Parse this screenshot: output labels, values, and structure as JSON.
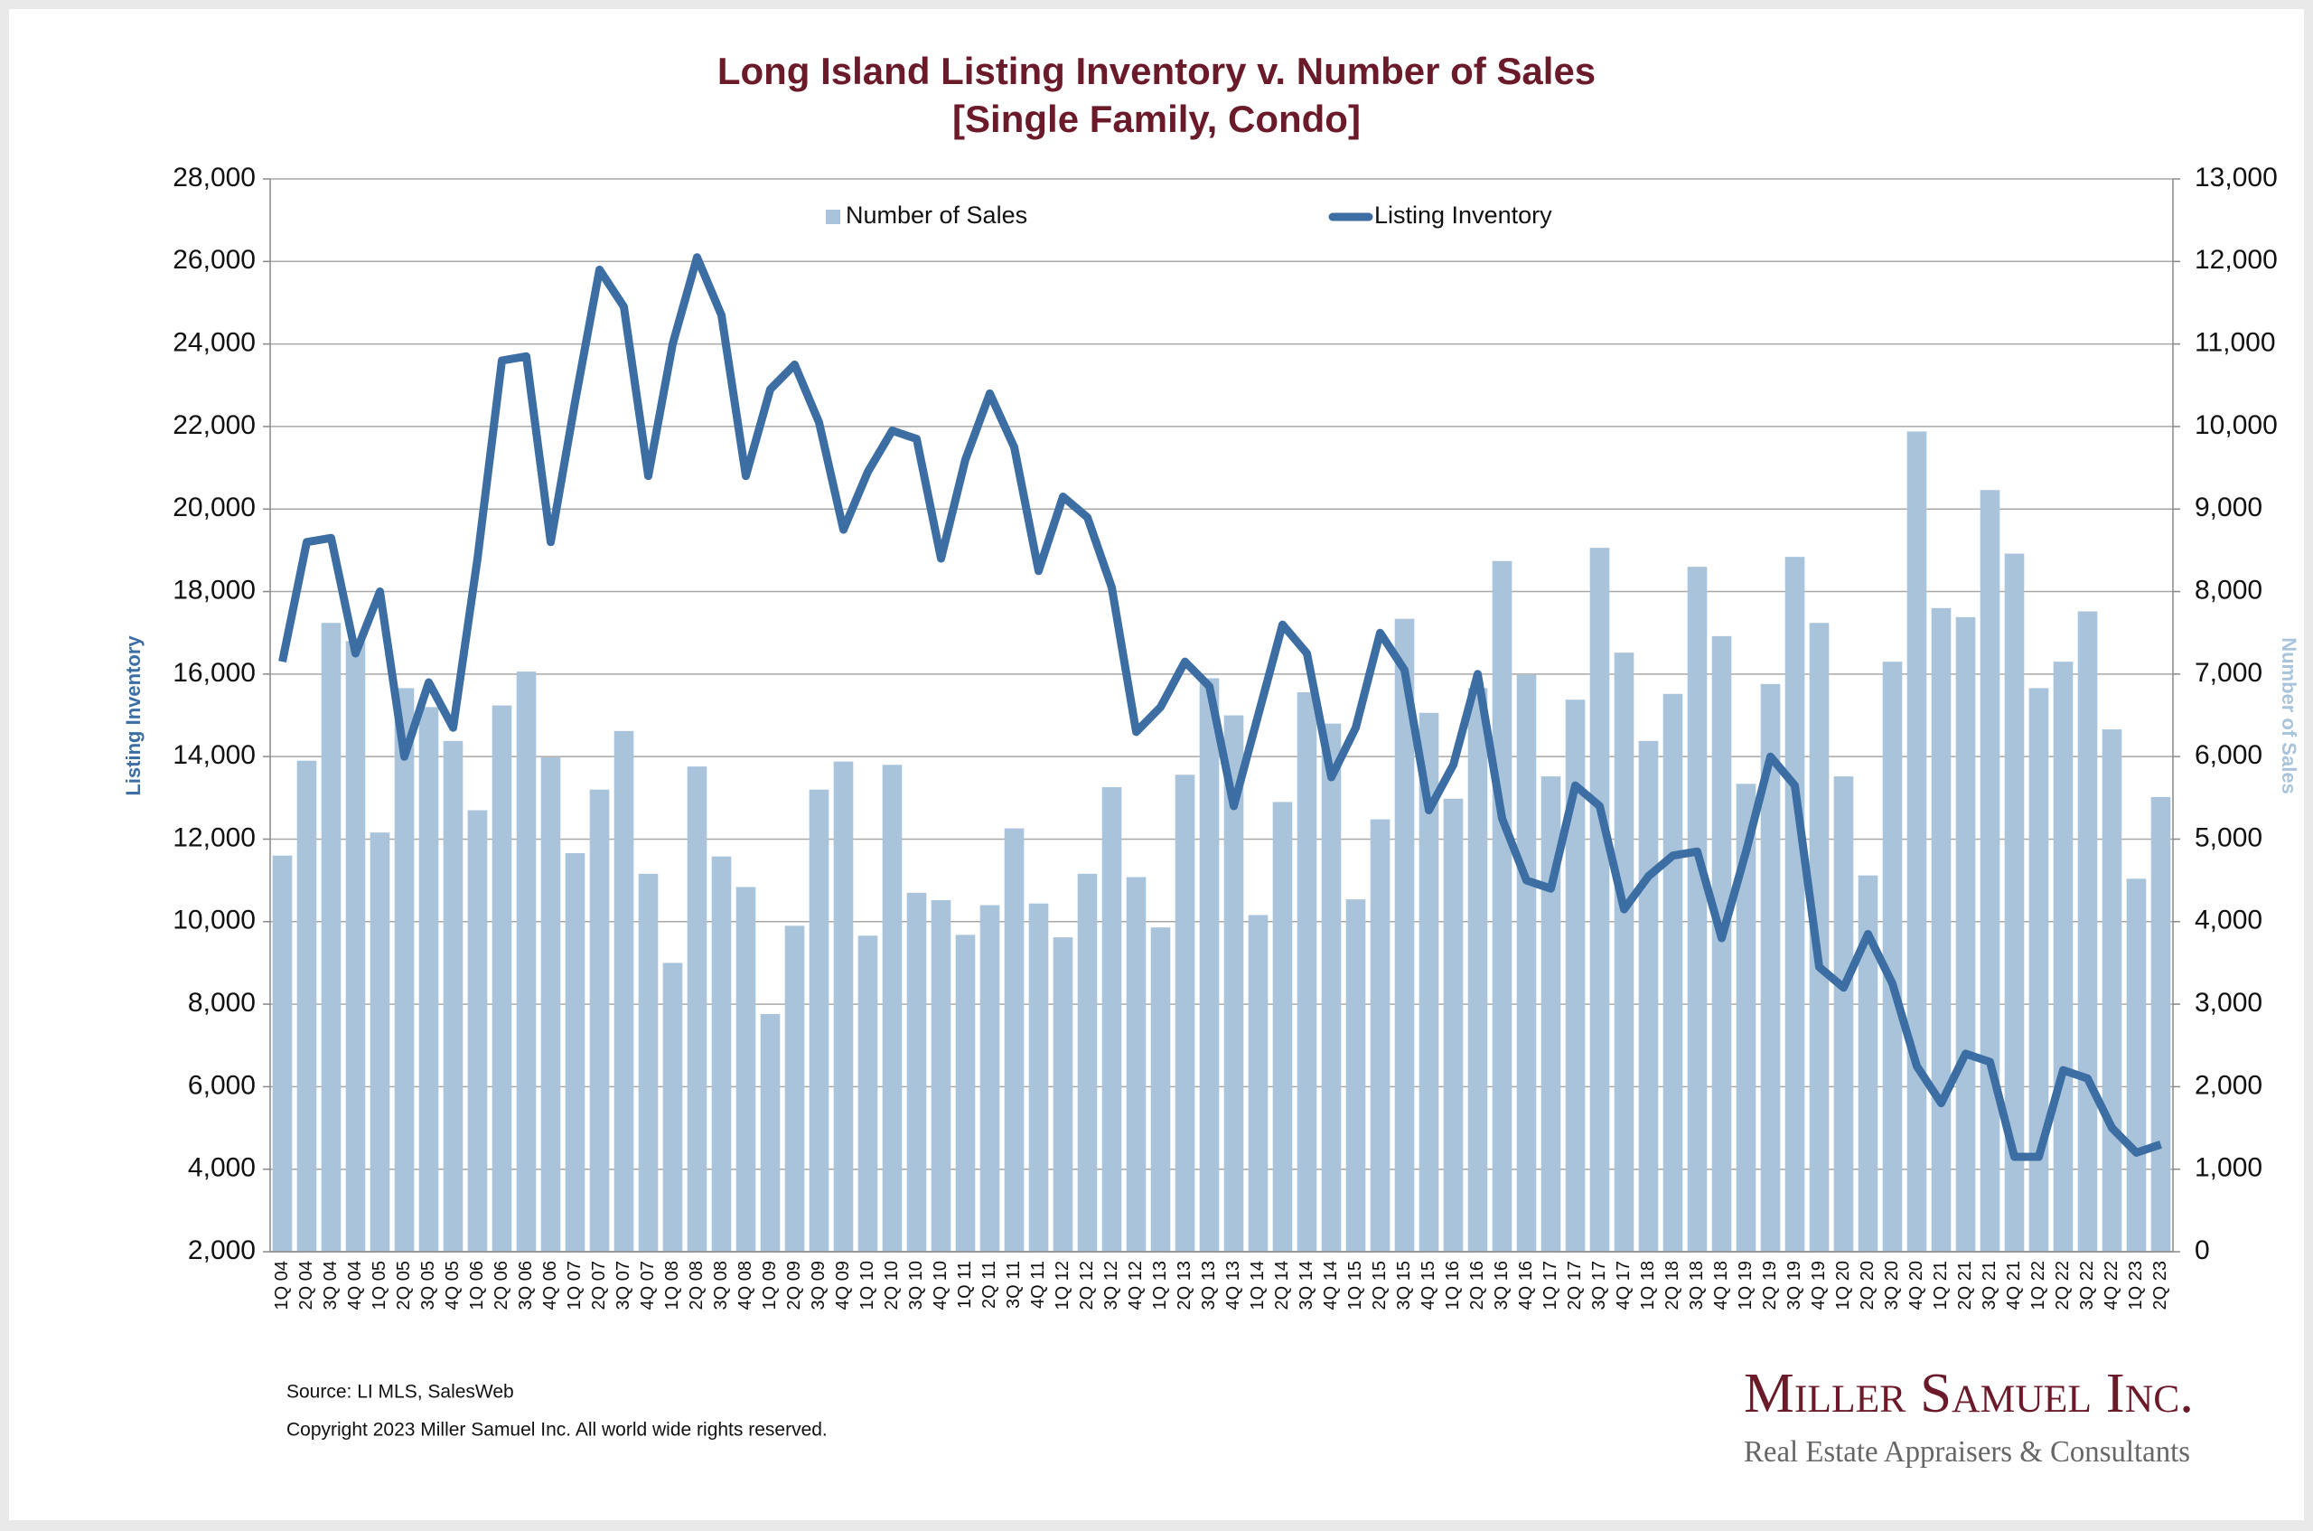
{
  "chart_data": {
    "type": "bar-line",
    "title": "Long Island Listing Inventory v. Number of Sales",
    "subtitle": "[Single Family, Condo]",
    "y_label": "Listing Inventory",
    "y2_label": "Number of Sales",
    "source": "Source: LI MLS, SalesWeb",
    "copyright": "Copyright 2023 Miller Samuel Inc.  All world wide rights reserved.",
    "logo": "Miller Samuel Inc.",
    "tagline": "Real Estate Appraisers & Consultants",
    "categories": [
      "1Q 04",
      "2Q 04",
      "3Q 04",
      "4Q 04",
      "1Q 05",
      "2Q 05",
      "3Q 05",
      "4Q 05",
      "1Q 06",
      "2Q 06",
      "3Q 06",
      "4Q 06",
      "1Q 07",
      "2Q 07",
      "3Q 07",
      "4Q 07",
      "1Q 08",
      "2Q 08",
      "3Q 08",
      "4Q 08",
      "1Q 09",
      "2Q 09",
      "3Q 09",
      "4Q 09",
      "1Q 10",
      "2Q 10",
      "3Q 10",
      "4Q 10",
      "1Q 11",
      "2Q 11",
      "3Q 11",
      "4Q 11",
      "1Q 12",
      "2Q 12",
      "3Q 12",
      "4Q 12",
      "1Q 13",
      "2Q 13",
      "3Q 13",
      "4Q 13",
      "1Q 14",
      "2Q 14",
      "3Q 14",
      "4Q 14",
      "1Q 15",
      "2Q 15",
      "3Q 15",
      "4Q 15",
      "1Q 16",
      "2Q 16",
      "3Q 16",
      "4Q 16",
      "1Q 17",
      "2Q 17",
      "3Q 17",
      "4Q 17",
      "1Q 18",
      "2Q 18",
      "3Q 18",
      "4Q 18",
      "1Q 19",
      "2Q 19",
      "3Q 19",
      "4Q 19",
      "1Q 20",
      "2Q 20",
      "3Q 20",
      "4Q 20",
      "1Q 21",
      "2Q 21",
      "3Q 21",
      "4Q 21",
      "1Q 22",
      "2Q 22",
      "3Q 22",
      "4Q 22",
      "1Q 23",
      "2Q 23"
    ],
    "series": [
      {
        "name": "Number of Sales",
        "kind": "bar",
        "axis": "y2",
        "color": "#a9c4da",
        "values": [
          4800,
          5950,
          7620,
          7400,
          5080,
          6830,
          6600,
          6190,
          5350,
          6620,
          7030,
          5990,
          4830,
          5600,
          6310,
          4580,
          3500,
          5880,
          4790,
          4420,
          2880,
          3950,
          5600,
          5940,
          3830,
          5900,
          4350,
          4260,
          3840,
          4200,
          5130,
          4220,
          3810,
          4580,
          5630,
          4540,
          3930,
          5780,
          6950,
          6500,
          4080,
          5450,
          6780,
          6400,
          4270,
          5240,
          7670,
          6530,
          5490,
          6830,
          8370,
          6990,
          5760,
          6690,
          8530,
          7260,
          6190,
          6760,
          8300,
          7460,
          5670,
          6880,
          8420,
          7620,
          5760,
          4560,
          7150,
          9940,
          7800,
          7690,
          9230,
          8460,
          6830,
          7150,
          7760,
          6330,
          4520,
          5510
        ]
      },
      {
        "name": "Listing Inventory",
        "kind": "line",
        "axis": "y",
        "color": "#3c6ea3",
        "values": [
          16300,
          19200,
          19300,
          16500,
          18000,
          14000,
          15800,
          14700,
          18800,
          23600,
          23700,
          19200,
          22600,
          25800,
          24900,
          20800,
          24000,
          26100,
          24700,
          20800,
          22900,
          23500,
          22100,
          19500,
          20900,
          21900,
          21700,
          18800,
          21200,
          22800,
          21500,
          18500,
          20300,
          19800,
          18100,
          14600,
          15200,
          16300,
          15700,
          12800,
          15000,
          17200,
          16500,
          13500,
          14700,
          17000,
          16100,
          12700,
          13800,
          16000,
          12500,
          11000,
          10800,
          13300,
          12800,
          10300,
          11100,
          11600,
          11700,
          9600,
          11700,
          14000,
          13300,
          8900,
          8400,
          9700,
          8500,
          6500,
          5600,
          6800,
          6600,
          4300,
          4300,
          6400,
          6200,
          5000,
          4400,
          4600
        ]
      }
    ],
    "ylim": [
      2000,
      28000
    ],
    "yticks": [
      {
        "value": 2000,
        "label": "2,000"
      },
      {
        "value": 4000,
        "label": "4,000"
      },
      {
        "value": 6000,
        "label": "6,000"
      },
      {
        "value": 8000,
        "label": "8,000"
      },
      {
        "value": 10000,
        "label": "10,000"
      },
      {
        "value": 12000,
        "label": "12,000"
      },
      {
        "value": 14000,
        "label": "14,000"
      },
      {
        "value": 16000,
        "label": "16,000"
      },
      {
        "value": 18000,
        "label": "18,000"
      },
      {
        "value": 20000,
        "label": "20,000"
      },
      {
        "value": 22000,
        "label": "22,000"
      },
      {
        "value": 24000,
        "label": "24,000"
      },
      {
        "value": 26000,
        "label": "26,000"
      },
      {
        "value": 28000,
        "label": "28,000"
      }
    ],
    "y2lim": [
      0,
      13000
    ],
    "y2ticks": [
      0,
      {
        "value": 1000,
        "label": "1,000"
      },
      {
        "value": 2000,
        "label": "2,000"
      },
      {
        "value": 3000,
        "label": "3,000"
      },
      {
        "value": 4000,
        "label": "4,000"
      },
      {
        "value": 5000,
        "label": "5,000"
      },
      {
        "value": 6000,
        "label": "6,000"
      },
      {
        "value": 7000,
        "label": "7,000"
      },
      {
        "value": 8000,
        "label": "8,000"
      },
      {
        "value": 9000,
        "label": "9,000"
      },
      {
        "value": 10000,
        "label": "10,000"
      },
      {
        "value": 11000,
        "label": "11,000"
      },
      {
        "value": 12000,
        "label": "12,000"
      },
      {
        "value": 13000,
        "label": "13,000"
      }
    ],
    "grid": true,
    "legend": "top"
  }
}
